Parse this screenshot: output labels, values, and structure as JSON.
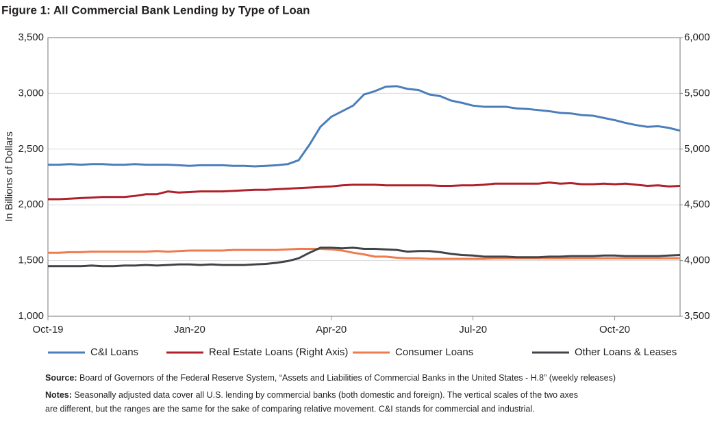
{
  "chart_data": {
    "type": "line",
    "title": "Figure 1: All Commercial Bank Lending by Type of Loan",
    "y_label": "In Billions of Dollars",
    "categories": [
      "Oct-19",
      null,
      null,
      null,
      null,
      null,
      null,
      null,
      null,
      null,
      null,
      null,
      null,
      "Jan-20",
      null,
      null,
      null,
      null,
      null,
      null,
      null,
      null,
      null,
      null,
      null,
      null,
      "Apr-20",
      null,
      null,
      null,
      null,
      null,
      null,
      null,
      null,
      null,
      null,
      null,
      null,
      "Jul-20",
      null,
      null,
      null,
      null,
      null,
      null,
      null,
      null,
      null,
      null,
      null,
      null,
      "Oct-20",
      null,
      null,
      null,
      null,
      null,
      null
    ],
    "ylim": [
      1000,
      3500
    ],
    "yticks": [
      {
        "value": 1000,
        "label": "1,000"
      },
      {
        "value": 1500,
        "label": "1,500"
      },
      {
        "value": 2000,
        "label": "2,000"
      },
      {
        "value": 2500,
        "label": "2,500"
      },
      {
        "value": 3000,
        "label": "3,000"
      },
      {
        "value": 3500,
        "label": "3,500"
      }
    ],
    "y2lim": [
      3500,
      6000
    ],
    "y2ticks": [
      {
        "value": 3500,
        "label": "3,500"
      },
      {
        "value": 4000,
        "label": "4,000"
      },
      {
        "value": 4500,
        "label": "4,500"
      },
      {
        "value": 5000,
        "label": "5,000"
      },
      {
        "value": 5500,
        "label": "5,500"
      },
      {
        "value": 6000,
        "label": "6,000"
      }
    ],
    "grid": true,
    "series": [
      {
        "name": "C&I Loans",
        "color": "#4a7ebb",
        "values": [
          2360,
          2360,
          2365,
          2360,
          2365,
          2365,
          2360,
          2360,
          2365,
          2360,
          2360,
          2360,
          2355,
          2350,
          2355,
          2355,
          2355,
          2350,
          2350,
          2345,
          2350,
          2355,
          2365,
          2400,
          2540,
          2700,
          2790,
          2840,
          2890,
          2990,
          3020,
          3060,
          3065,
          3040,
          3030,
          2990,
          2975,
          2935,
          2915,
          2890,
          2880,
          2880,
          2880,
          2865,
          2860,
          2850,
          2840,
          2825,
          2820,
          2805,
          2800,
          2780,
          2760,
          2735,
          2715,
          2700,
          2705,
          2690,
          2665
        ]
      },
      {
        "name": "Real Estate Loans (Right Axis)",
        "color": "#b0202a",
        "axis": "y2",
        "values": [
          4550,
          4550,
          4555,
          4560,
          4565,
          4570,
          4570,
          4570,
          4580,
          4595,
          4595,
          4620,
          4610,
          4615,
          4620,
          4620,
          4620,
          4625,
          4630,
          4635,
          4635,
          4640,
          4645,
          4650,
          4655,
          4660,
          4665,
          4675,
          4680,
          4680,
          4680,
          4675,
          4675,
          4675,
          4675,
          4675,
          4670,
          4670,
          4675,
          4675,
          4680,
          4690,
          4690,
          4690,
          4690,
          4690,
          4700,
          4690,
          4695,
          4685,
          4685,
          4690,
          4685,
          4690,
          4680,
          4670,
          4675,
          4665,
          4670
        ]
      },
      {
        "name": "Consumer Loans",
        "color": "#ef7b4d",
        "values": [
          1570,
          1570,
          1575,
          1575,
          1580,
          1580,
          1580,
          1580,
          1580,
          1580,
          1585,
          1580,
          1585,
          1590,
          1590,
          1590,
          1590,
          1595,
          1595,
          1595,
          1595,
          1595,
          1600,
          1605,
          1605,
          1605,
          1600,
          1590,
          1570,
          1555,
          1535,
          1535,
          1525,
          1520,
          1520,
          1515,
          1515,
          1515,
          1515,
          1515,
          1515,
          1520,
          1520,
          1520,
          1520,
          1520,
          1520,
          1520,
          1520,
          1520,
          1520,
          1520,
          1520,
          1520,
          1520,
          1520,
          1520,
          1520,
          1520
        ]
      },
      {
        "name": "Other Loans & Leases",
        "color": "#404448",
        "values": [
          1450,
          1450,
          1450,
          1450,
          1455,
          1450,
          1450,
          1455,
          1455,
          1460,
          1455,
          1460,
          1465,
          1465,
          1460,
          1465,
          1460,
          1460,
          1460,
          1465,
          1470,
          1480,
          1495,
          1520,
          1570,
          1615,
          1615,
          1610,
          1615,
          1605,
          1605,
          1600,
          1595,
          1580,
          1585,
          1585,
          1575,
          1560,
          1550,
          1545,
          1535,
          1535,
          1535,
          1530,
          1530,
          1530,
          1535,
          1535,
          1540,
          1540,
          1540,
          1545,
          1545,
          1540,
          1540,
          1540,
          1540,
          1545,
          1550
        ]
      }
    ],
    "source_label": "Source:",
    "source_text": "Board of Governors of the Federal Reserve System, “Assets and Liabilities of Commercial Banks in the United States - H.8” (weekly releases)",
    "notes_label": "Notes:",
    "notes_lines": [
      "Seasonally adjusted data cover all U.S. lending by commercial banks (both domestic and foreign). The vertical scales of the two axes",
      "are different, but the ranges are the same for the sake of comparing relative movement. C&I stands for commercial and industrial."
    ]
  }
}
